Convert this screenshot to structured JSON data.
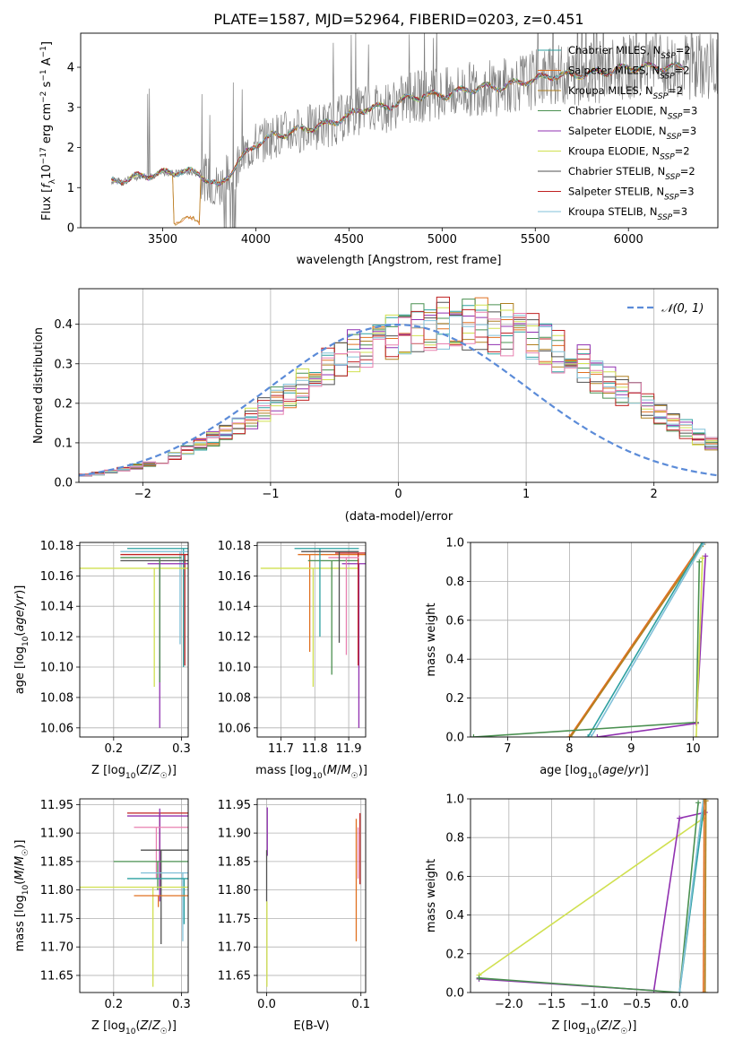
{
  "colors": {
    "chabrier_miles": "#2ca0a0",
    "salpeter_miles": "#e07020",
    "kroupa_miles": "#b08020",
    "chabrier_elodie": "#4a9050",
    "salpeter_elodie": "#9030b0",
    "kroupa_elodie": "#d0e050",
    "chabrier_stelib": "#505050",
    "salpeter_stelib": "#c02020",
    "kroupa_stelib": "#80c0d8",
    "data": "#808080",
    "normal": "#5b8bd8",
    "pink": "#e880b0"
  },
  "chart_data": [
    {
      "type": "line",
      "title": "PLATE=1587, MJD=52964, FIBERID=0203, z=0.451",
      "xlabel": "wavelength [Angstrom, rest frame]",
      "ylabel": "Flux [f_λ 10^-17 erg cm^-2 s^-1 A^-1]",
      "xlim": [
        3060,
        6480
      ],
      "ylim": [
        0,
        4.85
      ],
      "xticks": [
        "3500",
        "4000",
        "4500",
        "5000",
        "5500",
        "6000"
      ],
      "yticks": [
        "0",
        "1",
        "2",
        "3",
        "4"
      ],
      "grid": false,
      "legend_placement": "right",
      "series": [
        {
          "name": "Chabrier MILES, N_SSP=2"
        },
        {
          "name": "Salpeter MILES, N_SSP=2"
        },
        {
          "name": "Kroupa MILES, N_SSP=2"
        },
        {
          "name": "Chabrier ELODIE, N_SSP=3"
        },
        {
          "name": "Salpeter ELODIE, N_SSP=3"
        },
        {
          "name": "Kroupa ELODIE, N_SSP=2"
        },
        {
          "name": "Chabrier STELIB, N_SSP=2"
        },
        {
          "name": "Salpeter STELIB, N_SSP=3"
        },
        {
          "name": "Kroupa STELIB, N_SSP=3"
        }
      ],
      "model_continuum": {
        "x": [
          3225,
          3300,
          3400,
          3500,
          3600,
          3700,
          3800,
          3900,
          4000,
          4100,
          4200,
          4300,
          4400,
          4500,
          4600,
          4700,
          4800,
          4900,
          5000,
          5100,
          5200,
          5300,
          5400,
          5500,
          5600,
          5700,
          5800,
          5900,
          6000,
          6100,
          6250
        ],
        "y": [
          1.15,
          1.2,
          1.3,
          1.35,
          1.4,
          1.35,
          1.0,
          1.6,
          2.1,
          2.3,
          2.4,
          2.5,
          2.6,
          2.8,
          3.0,
          3.0,
          3.2,
          3.3,
          3.3,
          3.4,
          3.5,
          3.5,
          3.6,
          3.7,
          3.8,
          3.8,
          3.85,
          3.9,
          4.0,
          4.0,
          4.0
        ]
      }
    },
    {
      "type": "histogram",
      "xlabel": "(data-model)/error",
      "ylabel": "Normed distribution",
      "xlim": [
        -2.5,
        2.5
      ],
      "ylim": [
        0,
        0.49
      ],
      "xticks": [
        "−2",
        "−1",
        "0",
        "1",
        "2"
      ],
      "yticks": [
        "0.0",
        "0.1",
        "0.2",
        "0.3",
        "0.4"
      ],
      "grid": true,
      "legend_placement": "top-right",
      "legend": "𝒩(0, 1)",
      "bin_width": 0.1,
      "bin_start": -2.5,
      "envelope": [
        0.018,
        0.022,
        0.027,
        0.033,
        0.04,
        0.048,
        0.057,
        0.068,
        0.08,
        0.094,
        0.11,
        0.127,
        0.146,
        0.165,
        0.185,
        0.205,
        0.225,
        0.25,
        0.27,
        0.29,
        0.31,
        0.33,
        0.345,
        0.36,
        0.375,
        0.385,
        0.395,
        0.4,
        0.403,
        0.405,
        0.403,
        0.4,
        0.395,
        0.387,
        0.378,
        0.365,
        0.35,
        0.335,
        0.315,
        0.295,
        0.275,
        0.255,
        0.235,
        0.215,
        0.195,
        0.175,
        0.155,
        0.135,
        0.115,
        0.098
      ]
    },
    {
      "type": "error-bars",
      "xlabel": "Z [log10(Z/Z☉)]",
      "ylabel": "age [log10(age/yr)]",
      "xlim": [
        0.15,
        0.31
      ],
      "ylim": [
        10.054,
        10.182
      ],
      "xticks": [
        "0.2",
        "0.3"
      ],
      "yticks": [
        "10.06",
        "10.08",
        "10.10",
        "10.12",
        "10.14",
        "10.16",
        "10.18"
      ],
      "grid": true
    },
    {
      "type": "error-bars",
      "xlabel": "mass [log10(M/M☉)]",
      "xlim": [
        11.63,
        11.95
      ],
      "ylim": [
        10.054,
        10.182
      ],
      "xticks": [
        "11.7",
        "11.8",
        "11.9"
      ],
      "yticks": [
        "10.06",
        "10.08",
        "10.10",
        "10.12",
        "10.14",
        "10.16",
        "10.18"
      ],
      "grid": true
    },
    {
      "type": "line",
      "xlabel": "age [log10(age/yr)]",
      "ylabel": "mass weight",
      "xlim": [
        6.4,
        10.4
      ],
      "ylim": [
        0,
        1
      ],
      "xticks": [
        "7",
        "8",
        "9",
        "10"
      ],
      "yticks": [
        "0.0",
        "0.2",
        "0.4",
        "0.6",
        "0.8",
        "1.0"
      ],
      "grid": true
    },
    {
      "type": "error-bars",
      "xlabel": "Z [log10(Z/Z☉)]",
      "ylabel": "mass [log10(M/M☉)]",
      "xlim": [
        0.15,
        0.31
      ],
      "ylim": [
        11.62,
        11.96
      ],
      "xticks": [
        "0.2",
        "0.3"
      ],
      "yticks": [
        "11.65",
        "11.70",
        "11.75",
        "11.80",
        "11.85",
        "11.90",
        "11.95"
      ],
      "grid": true
    },
    {
      "type": "error-bars",
      "xlabel": "E(B-V)",
      "xlim": [
        -0.01,
        0.105
      ],
      "ylim": [
        11.62,
        11.96
      ],
      "xticks": [
        "0.0",
        "0.1"
      ],
      "yticks": [
        "11.65",
        "11.70",
        "11.75",
        "11.80",
        "11.85",
        "11.90",
        "11.95"
      ],
      "grid": true
    },
    {
      "type": "line",
      "xlabel": "Z [log10(Z/Z☉)]",
      "ylabel": "mass weight",
      "xlim": [
        -2.45,
        0.45
      ],
      "ylim": [
        0,
        1
      ],
      "xticks": [
        "−2.0",
        "−1.5",
        "−1.0",
        "−0.5",
        "0.0"
      ],
      "yticks": [
        "0.0",
        "0.2",
        "0.4",
        "0.6",
        "0.8",
        "1.0"
      ],
      "grid": true
    }
  ]
}
